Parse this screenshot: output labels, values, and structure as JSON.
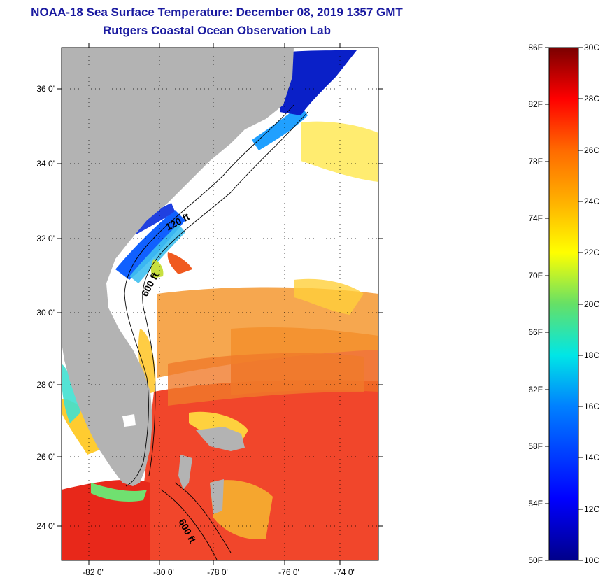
{
  "header": {
    "title": "NOAA-18 Sea Surface Temperature:  December 08, 2019 1357 GMT",
    "subtitle": "Rutgers Coastal Ocean Observation Lab"
  },
  "map": {
    "lat_labels": [
      "36 0'",
      "34 0'",
      "32 0'",
      "30 0'",
      "28 0'",
      "26 0'",
      "24 0'"
    ],
    "lon_labels": [
      "-82 0'",
      "-80 0'",
      "-78 0'",
      "-76 0'",
      "-74 0'"
    ],
    "isobaths": [
      "120 ft",
      "600 ft",
      "600 ft"
    ],
    "colors": {
      "land": "#b3b3b3",
      "water_bg": "#ffffff"
    }
  },
  "colorbar": {
    "fahrenheit_labels": [
      "86F",
      "82F",
      "78F",
      "74F",
      "70F",
      "66F",
      "62F",
      "58F",
      "54F",
      "50F"
    ],
    "celsius_labels": [
      "30C",
      "28C",
      "26C",
      "24C",
      "22C",
      "20C",
      "18C",
      "16C",
      "14C",
      "12C",
      "10C"
    ]
  }
}
